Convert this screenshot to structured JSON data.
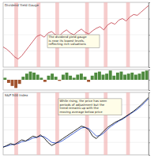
{
  "chart_data": [
    {
      "type": "line",
      "title": "Dividend Yield Gauge",
      "annotation": [
        "The dividend yield gauge",
        "is near its lowest levels,",
        "reflecting rich valuations"
      ],
      "x": [
        0,
        1,
        2,
        3,
        4,
        5,
        6,
        7,
        8,
        9,
        10,
        11,
        12,
        13,
        14,
        15,
        16,
        17,
        18,
        19,
        20,
        21,
        22,
        23,
        24,
        25,
        26,
        27,
        28,
        29,
        30,
        31,
        32,
        33,
        34,
        35,
        36,
        37,
        38,
        39
      ],
      "xlim": [
        0,
        39
      ],
      "ylim": [
        20,
        100
      ],
      "yticks": [
        20,
        40,
        60,
        80,
        100
      ],
      "grid": true,
      "tick_labels": false,
      "bands": [
        [
          3,
          4
        ],
        [
          9,
          10
        ],
        [
          14,
          15
        ],
        [
          22,
          23
        ],
        [
          27,
          28
        ],
        [
          33,
          34
        ]
      ],
      "band_color": "#f2b8b8",
      "series": [
        {
          "color": "#c8505a",
          "values": [
            45,
            42,
            38,
            33,
            30,
            34,
            40,
            46,
            52,
            58,
            60,
            57,
            62,
            64,
            60,
            58,
            63,
            66,
            62,
            60,
            64,
            67,
            63,
            61,
            65,
            68,
            70,
            66,
            72,
            75,
            73,
            78,
            80,
            77,
            82,
            85,
            84,
            88,
            92,
            96
          ]
        }
      ]
    },
    {
      "type": "bar",
      "x": [
        0,
        1,
        2,
        3,
        4,
        5,
        6,
        7,
        8,
        9,
        10,
        11,
        12,
        13,
        14,
        15,
        16,
        17,
        18,
        19,
        20,
        21,
        22,
        23,
        24,
        25,
        26,
        27,
        28,
        29,
        30,
        31,
        32,
        33,
        34,
        35,
        36,
        37,
        38,
        39
      ],
      "xlim": [
        -0.5,
        39.5
      ],
      "ylim": [
        -1,
        1
      ],
      "yticks": [
        -1,
        0,
        1
      ],
      "grid": true,
      "tick_labels": false,
      "values": [
        0.2,
        -0.3,
        -0.6,
        -0.8,
        -0.4,
        0.3,
        0.6,
        0.8,
        0.7,
        0.5,
        0.2,
        -0.2,
        0.4,
        0.6,
        0.3,
        -0.1,
        0.5,
        0.7,
        0.4,
        0.2,
        0.5,
        0.6,
        0.3,
        -0.2,
        0.4,
        0.7,
        0.8,
        0.5,
        0.6,
        0.9,
        0.4,
        0.7,
        0.8,
        0.5,
        0.6,
        0.7,
        0.5,
        0.6,
        0.8,
        0.9
      ],
      "colors": [
        "#4e8a3e",
        "#a0522d",
        "#a0522d",
        "#a0522d",
        "#a0522d",
        "#4e8a3e",
        "#4e8a3e",
        "#4e8a3e",
        "#4e8a3e",
        "#4e8a3e",
        "#4e8a3e",
        "#a0522d",
        "#4e8a3e",
        "#4e8a3e",
        "#4e8a3e",
        "#a0522d",
        "#4e8a3e",
        "#4e8a3e",
        "#4e8a3e",
        "#4e8a3e",
        "#4e8a3e",
        "#4e8a3e",
        "#4e8a3e",
        "#a0522d",
        "#4e8a3e",
        "#4e8a3e",
        "#4e8a3e",
        "#4e8a3e",
        "#4e8a3e",
        "#4e8a3e",
        "#4e8a3e",
        "#4e8a3e",
        "#4e8a3e",
        "#4e8a3e",
        "#4e8a3e",
        "#4e8a3e",
        "#4e8a3e",
        "#4e8a3e",
        "#4e8a3e",
        "#4e8a3e"
      ]
    },
    {
      "type": "line",
      "title": "S&P 500 Index",
      "annotation": [
        "While rising, the price has seen",
        "periods of adjustment but the",
        "trend remains up with the",
        "moving average below price"
      ],
      "x": [
        0,
        1,
        2,
        3,
        4,
        5,
        6,
        7,
        8,
        9,
        10,
        11,
        12,
        13,
        14,
        15,
        16,
        17,
        18,
        19,
        20,
        21,
        22,
        23,
        24,
        25,
        26,
        27,
        28,
        29,
        30,
        31,
        32,
        33,
        34,
        35,
        36,
        37,
        38,
        39
      ],
      "xlim": [
        0,
        39
      ],
      "ylim": [
        0,
        100
      ],
      "yticks": [
        0,
        20,
        40,
        60,
        80,
        100
      ],
      "grid": true,
      "tick_labels": false,
      "bands": [
        [
          3,
          4
        ],
        [
          9,
          10
        ],
        [
          14,
          15
        ],
        [
          22,
          23
        ],
        [
          27,
          28
        ],
        [
          33,
          34
        ]
      ],
      "band_color": "#f2b8b8",
      "series": [
        {
          "color": "#3355cc",
          "values": [
            13,
            14,
            16,
            17,
            18,
            21,
            22,
            24,
            27,
            28,
            30,
            29,
            25,
            20,
            19,
            20,
            23,
            27,
            31,
            35,
            39,
            43,
            44,
            42,
            36,
            30,
            31,
            35,
            41,
            46,
            50,
            54,
            57,
            61,
            65,
            69,
            73,
            78,
            84,
            90
          ]
        },
        {
          "color": "#111111",
          "values": [
            12,
            15,
            18,
            16,
            20,
            24,
            22,
            26,
            30,
            28,
            32,
            27,
            20,
            15,
            18,
            22,
            26,
            30,
            34,
            38,
            42,
            46,
            44,
            40,
            30,
            26,
            32,
            38,
            44,
            48,
            52,
            55,
            58,
            62,
            66,
            70,
            75,
            80,
            86,
            92
          ]
        }
      ]
    }
  ]
}
